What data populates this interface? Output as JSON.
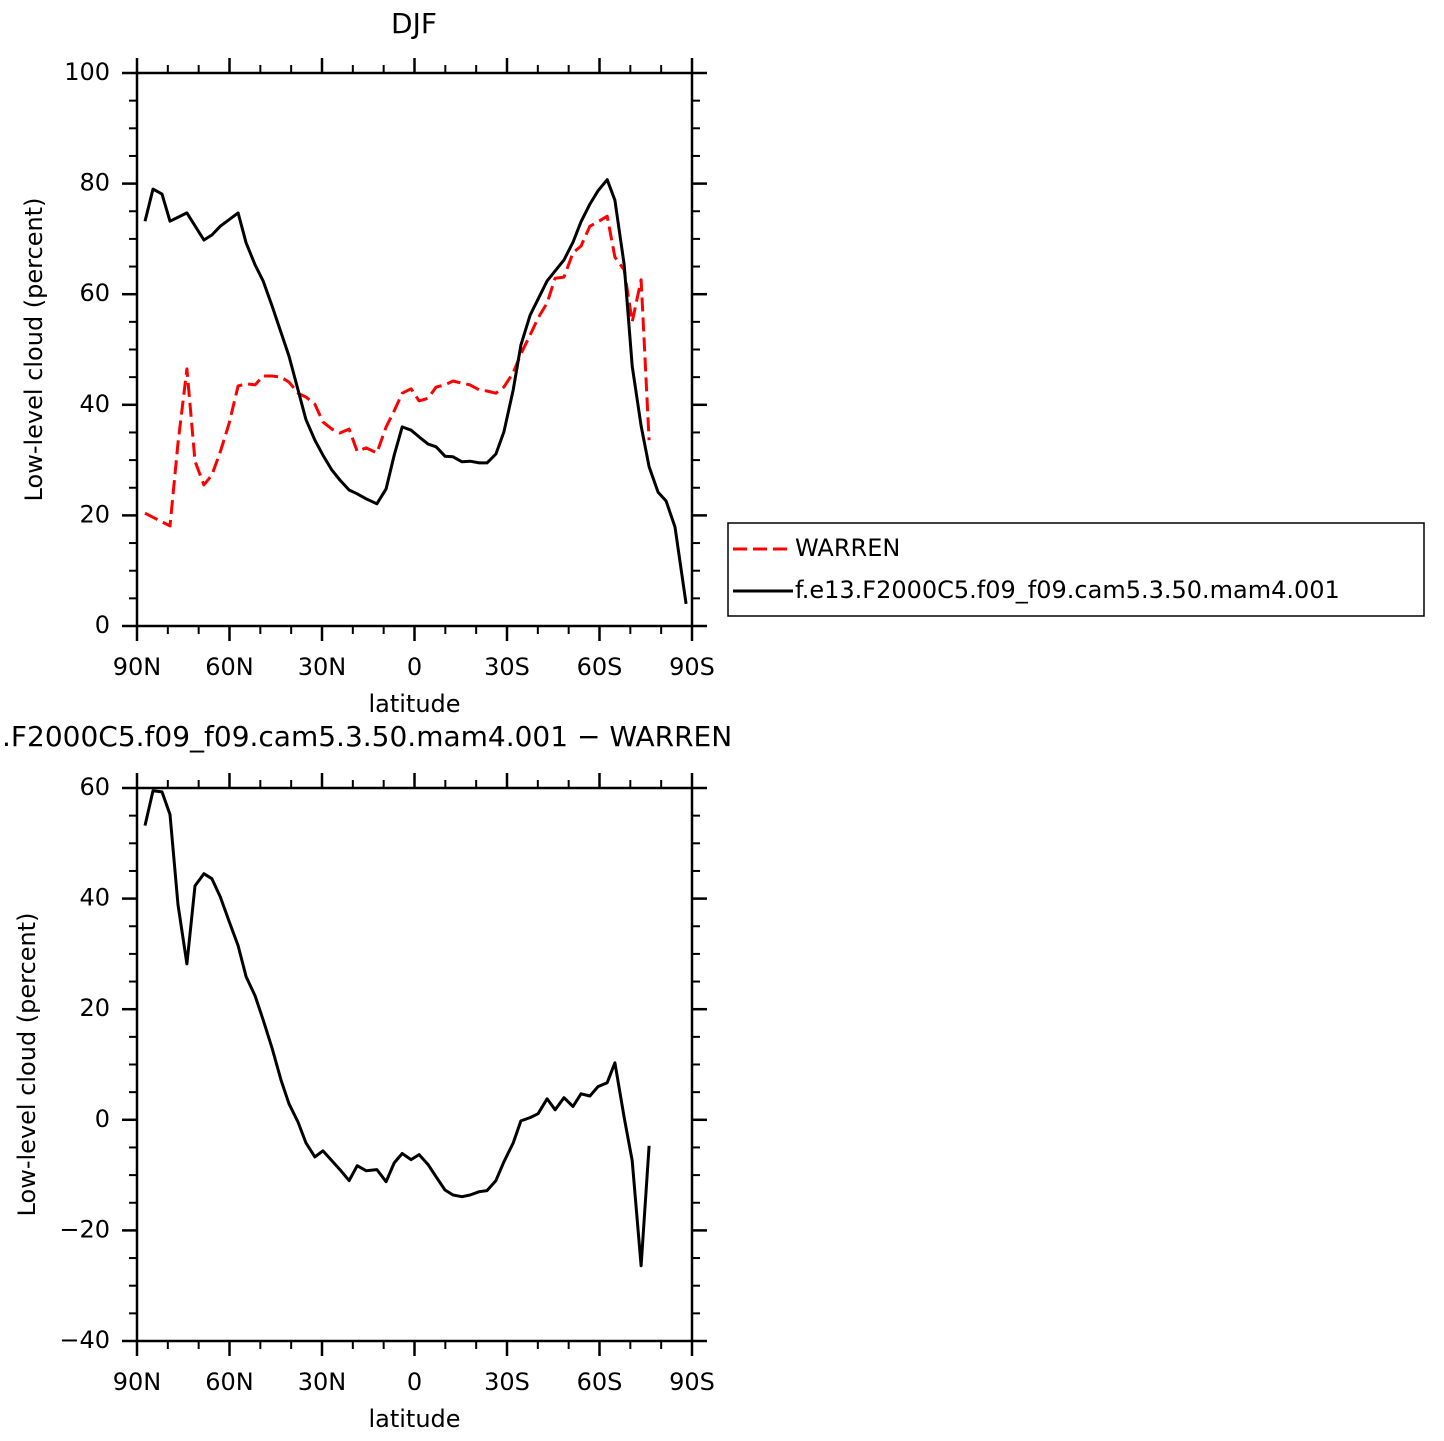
{
  "chart_data": [
    {
      "type": "line",
      "title": "DJF",
      "xlabel": "latitude",
      "ylabel": "Low-level cloud (percent)",
      "xlim": [
        90,
        -90
      ],
      "xticks": [
        {
          "value": 90,
          "label": "90N"
        },
        {
          "value": 60,
          "label": "60N"
        },
        {
          "value": 30,
          "label": "30N"
        },
        0,
        {
          "value": -30,
          "label": "30S"
        },
        {
          "value": -60,
          "label": "60S"
        },
        {
          "value": -90,
          "label": "90S"
        }
      ],
      "ylim": [
        0,
        100
      ],
      "yticks": [
        0,
        20,
        40,
        60,
        80,
        100
      ],
      "legend": "right",
      "series": [
        {
          "name": "WARREN",
          "color": "#ff0000",
          "dashed": true,
          "x": [
            87.4,
            79.3,
            76.7,
            73.8,
            71.2,
            68.3,
            65.7,
            63.0,
            60.2,
            57.2,
            54.6,
            51.7,
            49.1,
            46.2,
            43.3,
            40.7,
            37.8,
            35.2,
            32.3,
            29.7,
            26.8,
            24.2,
            21.2,
            18.6,
            15.7,
            12.2,
            9.2,
            6.6,
            4.0,
            1.1,
            -1.5,
            -4.4,
            -7.0,
            -9.9,
            -12.5,
            -15.4,
            -18.0,
            -21.0,
            -23.5,
            -26.4,
            -29.0,
            -32.0,
            -34.5,
            -37.5,
            -40.1,
            -43.0,
            -45.6,
            -48.5,
            -51.4,
            -54.0,
            -56.9,
            -59.5,
            -62.5,
            -65.0,
            -68.0,
            -70.6,
            -73.5,
            -76.1
          ],
          "values": [
            20.4,
            18.1,
            33.1,
            46.5,
            29.8,
            25.5,
            27.3,
            31.5,
            36.5,
            43.4,
            43.8,
            43.6,
            45.2,
            45.2,
            45.0,
            44.1,
            42.1,
            41.4,
            40.1,
            36.9,
            35.6,
            34.9,
            35.6,
            31.6,
            32.2,
            31.3,
            36.0,
            38.9,
            42.1,
            42.9,
            40.7,
            41.2,
            43.2,
            43.6,
            44.3,
            43.9,
            43.6,
            42.7,
            42.5,
            42.1,
            43.2,
            45.8,
            49.2,
            52.6,
            55.7,
            58.4,
            62.9,
            63.1,
            67.5,
            68.7,
            72.3,
            73.1,
            74.1,
            66.7,
            64.4,
            55.0,
            62.6,
            33.6
          ]
        },
        {
          "name": "f.e13.F2000C5.f09_f09.cam5.3.50.mam4.001",
          "color": "#000000",
          "dashed": false,
          "x": [
            87.4,
            84.8,
            81.9,
            79.3,
            73.8,
            68.3,
            65.7,
            63.0,
            57.2,
            54.6,
            51.7,
            49.1,
            46.2,
            40.7,
            35.2,
            32.3,
            29.7,
            26.8,
            24.2,
            21.2,
            18.6,
            15.7,
            12.2,
            9.2,
            6.6,
            4.0,
            1.1,
            -1.5,
            -4.4,
            -7.0,
            -9.9,
            -12.5,
            -15.4,
            -18.0,
            -21.0,
            -23.5,
            -26.4,
            -29.0,
            -32.0,
            -34.5,
            -37.5,
            -43.0,
            -48.5,
            -51.4,
            -54.0,
            -56.9,
            -59.5,
            -62.5,
            -65.0,
            -68.0,
            -70.6,
            -73.5,
            -76.1,
            -79.0,
            -81.6,
            -84.5,
            -88.1
          ],
          "values": [
            73.2,
            79.0,
            78.1,
            73.2,
            74.7,
            69.8,
            70.7,
            72.3,
            74.7,
            69.3,
            65.3,
            62.4,
            57.9,
            48.8,
            37.3,
            33.6,
            30.9,
            28.2,
            26.4,
            24.6,
            23.9,
            23.0,
            22.1,
            24.8,
            30.9,
            36.0,
            35.4,
            34.2,
            32.9,
            32.4,
            30.7,
            30.6,
            29.7,
            29.8,
            29.5,
            29.5,
            31.1,
            35.1,
            42.7,
            50.8,
            56.2,
            62.4,
            66.2,
            69.4,
            73.1,
            76.3,
            78.7,
            80.7,
            77.0,
            65.3,
            47.0,
            36.2,
            28.8,
            24.2,
            22.6,
            17.9,
            4.0
          ]
        }
      ]
    },
    {
      "type": "line",
      "title": ".F2000C5.f09_f09.cam5.3.50.mam4.001  −  WARREN",
      "xlabel": "latitude",
      "ylabel": "Low-level cloud (percent)",
      "xlim": [
        90,
        -90
      ],
      "xticks": [
        {
          "value": 90,
          "label": "90N"
        },
        {
          "value": 60,
          "label": "60N"
        },
        {
          "value": 30,
          "label": "30N"
        },
        0,
        {
          "value": -30,
          "label": "30S"
        },
        {
          "value": -60,
          "label": "60S"
        },
        {
          "value": -90,
          "label": "90S"
        }
      ],
      "ylim": [
        -40,
        60
      ],
      "yticks": [
        {
          "value": -40,
          "label": "−40"
        },
        {
          "value": -20,
          "label": "−20"
        },
        0,
        20,
        40,
        60
      ],
      "series": [
        {
          "color": "#000000",
          "dashed": false,
          "x": [
            87.4,
            84.8,
            81.9,
            79.3,
            76.7,
            73.8,
            71.2,
            68.3,
            65.7,
            63.0,
            60.2,
            57.2,
            54.6,
            51.7,
            49.1,
            46.2,
            43.3,
            40.7,
            37.8,
            35.2,
            32.3,
            29.7,
            26.8,
            24.2,
            21.2,
            18.6,
            15.7,
            12.2,
            9.2,
            6.6,
            4.0,
            1.1,
            -1.5,
            -4.4,
            -7.0,
            -9.9,
            -12.5,
            -15.4,
            -18.0,
            -21.0,
            -23.5,
            -26.4,
            -29.0,
            -32.0,
            -34.5,
            -37.5,
            -40.1,
            -43.0,
            -45.6,
            -48.5,
            -51.4,
            -54.0,
            -56.9,
            -59.5,
            -62.5,
            -65.0,
            -68.0,
            -70.6,
            -73.5,
            -76.1
          ],
          "values": [
            53.2,
            59.5,
            59.3,
            55.2,
            38.9,
            28.2,
            42.3,
            44.5,
            43.6,
            40.3,
            36.0,
            31.5,
            25.9,
            22.4,
            18.1,
            13.0,
            7.2,
            2.9,
            -0.4,
            -4.2,
            -6.7,
            -5.6,
            -7.4,
            -9.0,
            -11.0,
            -8.3,
            -9.2,
            -9.0,
            -11.2,
            -7.8,
            -6.1,
            -7.2,
            -6.3,
            -8.1,
            -10.3,
            -12.7,
            -13.6,
            -13.9,
            -13.6,
            -13.0,
            -12.8,
            -11.0,
            -7.6,
            -4.2,
            -0.2,
            0.4,
            1.1,
            3.8,
            1.8,
            4.0,
            2.4,
            4.7,
            4.3,
            6.0,
            6.7,
            10.3,
            0.4,
            -7.4,
            -26.4,
            -4.7
          ]
        }
      ]
    }
  ]
}
